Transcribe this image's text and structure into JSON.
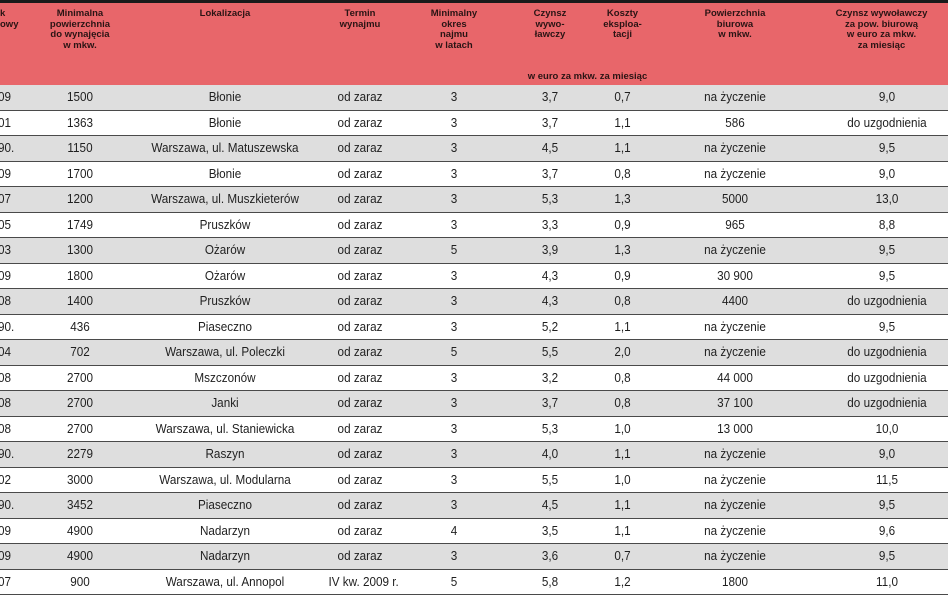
{
  "headers": {
    "year": "k\nowy",
    "min_area": "Minimalna\npowierzchnia\ndo wynajęcia\nw mkw.",
    "location": "Lokalizacja",
    "term": "Termin\nwynajmu",
    "min_period": "Minimalny\nokres\nnajmu\nw latach",
    "rent": "Czynsz\nwywo-\nławczy",
    "costs": "Koszty\neksploa-\ntacji",
    "office_area": "Powierzchnia\nbiurowa\nw mkw.",
    "office_rent": "Czynsz wywoławczy\nza pow. biurową\nw euro za mkw.\nza miesiąc",
    "unit": "w euro za mkw. za miesiąc"
  },
  "rows": [
    {
      "year": "09",
      "min_area": "1500",
      "location": "Błonie",
      "term": "od zaraz",
      "period": "3",
      "rent": "3,7",
      "costs": "0,7",
      "office_area": "na życzenie",
      "office_rent": "9,0"
    },
    {
      "year": "01",
      "min_area": "1363",
      "location": "Błonie",
      "term": "od zaraz",
      "period": "3",
      "rent": "3,7",
      "costs": "1,1",
      "office_area": "586",
      "office_rent": "do uzgodnienia"
    },
    {
      "year": "90.",
      "min_area": "1150",
      "location": "Warszawa, ul. Matuszewska",
      "term": "od zaraz",
      "period": "3",
      "rent": "4,5",
      "costs": "1,1",
      "office_area": "na życzenie",
      "office_rent": "9,5"
    },
    {
      "year": "09",
      "min_area": "1700",
      "location": "Błonie",
      "term": "od zaraz",
      "period": "3",
      "rent": "3,7",
      "costs": "0,8",
      "office_area": "na życzenie",
      "office_rent": "9,0"
    },
    {
      "year": "07",
      "min_area": "1200",
      "location": "Warszawa, ul. Muszkieterów",
      "term": "od zaraz",
      "period": "3",
      "rent": "5,3",
      "costs": "1,3",
      "office_area": "5000",
      "office_rent": "13,0"
    },
    {
      "year": "05",
      "min_area": "1749",
      "location": "Pruszków",
      "term": "od zaraz",
      "period": "3",
      "rent": "3,3",
      "costs": "0,9",
      "office_area": "965",
      "office_rent": "8,8"
    },
    {
      "year": "03",
      "min_area": "1300",
      "location": "Ożarów",
      "term": "od zaraz",
      "period": "5",
      "rent": "3,9",
      "costs": "1,3",
      "office_area": "na życzenie",
      "office_rent": "9,5"
    },
    {
      "year": "09",
      "min_area": "1800",
      "location": "Ożarów",
      "term": "od zaraz",
      "period": "3",
      "rent": "4,3",
      "costs": "0,9",
      "office_area": "30 900",
      "office_rent": "9,5"
    },
    {
      "year": "08",
      "min_area": "1400",
      "location": "Pruszków",
      "term": "od zaraz",
      "period": "3",
      "rent": "4,3",
      "costs": "0,8",
      "office_area": "4400",
      "office_rent": "do uzgodnienia"
    },
    {
      "year": "90.",
      "min_area": "436",
      "location": "Piaseczno",
      "term": "od zaraz",
      "period": "3",
      "rent": "5,2",
      "costs": "1,1",
      "office_area": "na życzenie",
      "office_rent": "9,5"
    },
    {
      "year": "04",
      "min_area": "702",
      "location": "Warszawa, ul. Poleczki",
      "term": "od zaraz",
      "period": "5",
      "rent": "5,5",
      "costs": "2,0",
      "office_area": "na życzenie",
      "office_rent": "do uzgodnienia"
    },
    {
      "year": "08",
      "min_area": "2700",
      "location": "Mszczonów",
      "term": "od zaraz",
      "period": "3",
      "rent": "3,2",
      "costs": "0,8",
      "office_area": "44 000",
      "office_rent": "do uzgodnienia"
    },
    {
      "year": "08",
      "min_area": "2700",
      "location": "Janki",
      "term": "od zaraz",
      "period": "3",
      "rent": "3,7",
      "costs": "0,8",
      "office_area": "37 100",
      "office_rent": "do uzgodnienia"
    },
    {
      "year": "08",
      "min_area": "2700",
      "location": "Warszawa, ul. Staniewicka",
      "term": "od zaraz",
      "period": "3",
      "rent": "5,3",
      "costs": "1,0",
      "office_area": "13 000",
      "office_rent": "10,0"
    },
    {
      "year": "90.",
      "min_area": "2279",
      "location": "Raszyn",
      "term": "od zaraz",
      "period": "3",
      "rent": "4,0",
      "costs": "1,1",
      "office_area": "na życzenie",
      "office_rent": "9,0"
    },
    {
      "year": "02",
      "min_area": "3000",
      "location": "Warszawa, ul. Modularna",
      "term": "od zaraz",
      "period": "3",
      "rent": "5,5",
      "costs": "1,0",
      "office_area": "na życzenie",
      "office_rent": "11,5"
    },
    {
      "year": "90.",
      "min_area": "3452",
      "location": "Piaseczno",
      "term": "od zaraz",
      "period": "3",
      "rent": "4,5",
      "costs": "1,1",
      "office_area": "na życzenie",
      "office_rent": "9,5"
    },
    {
      "year": "09",
      "min_area": "4900",
      "location": "Nadarzyn",
      "term": "od zaraz",
      "period": "4",
      "rent": "3,5",
      "costs": "1,1",
      "office_area": "na życzenie",
      "office_rent": "9,6"
    },
    {
      "year": "09",
      "min_area": "4900",
      "location": "Nadarzyn",
      "term": "od zaraz",
      "period": "3",
      "rent": "3,6",
      "costs": "0,7",
      "office_area": "na życzenie",
      "office_rent": "9,5"
    },
    {
      "year": "07",
      "min_area": "900",
      "location": "Warszawa, ul. Annopol",
      "term": "IV kw. 2009 r.",
      "period": "5",
      "rent": "5,8",
      "costs": "1,2",
      "office_area": "1800",
      "office_rent": "11,0"
    }
  ]
}
